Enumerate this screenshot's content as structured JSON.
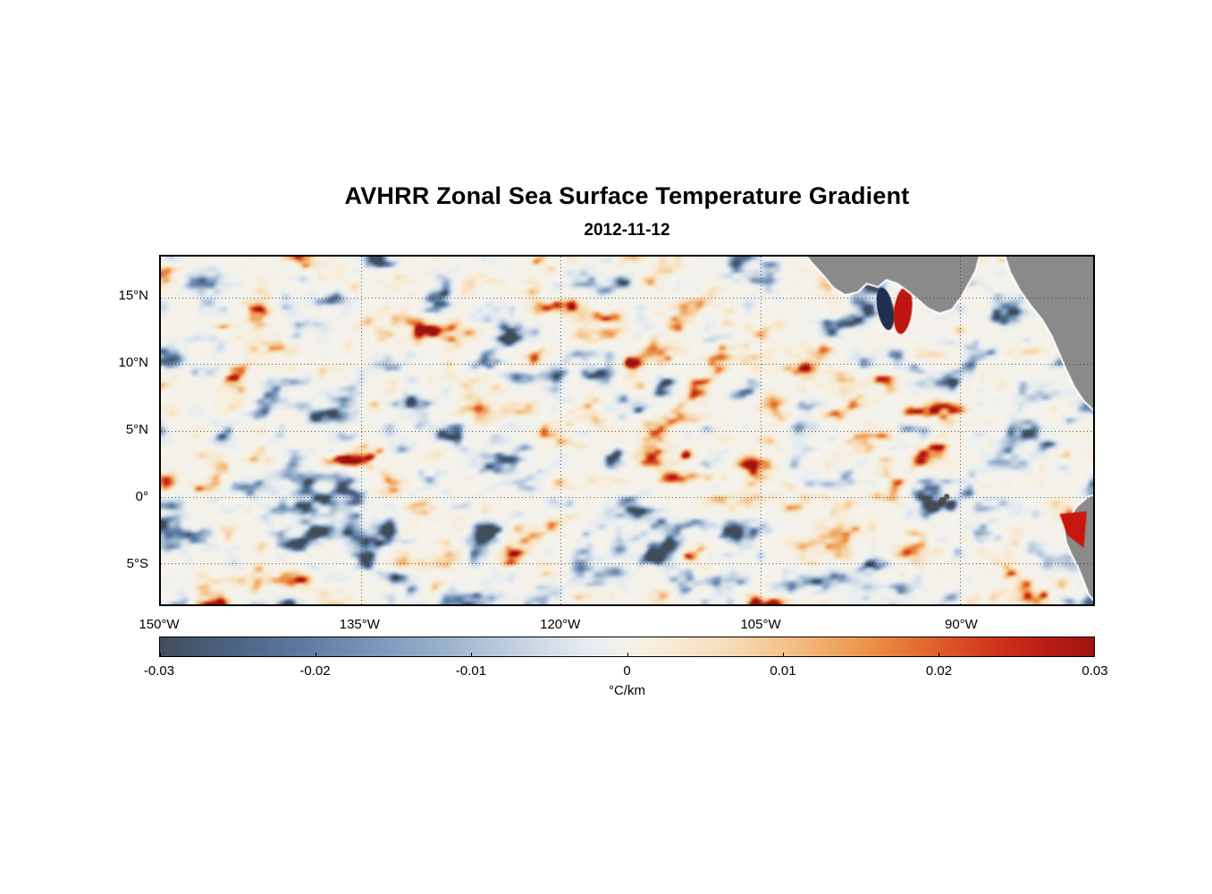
{
  "chart_data": {
    "type": "heatmap",
    "title": "AVHRR Zonal Sea Surface Temperature Gradient",
    "subtitle": "2012-11-12",
    "x_axis": {
      "label": "",
      "ticks": [
        "150°W",
        "135°W",
        "120°W",
        "105°W",
        "90°W"
      ],
      "tick_values": [
        -150,
        -135,
        -120,
        -105,
        -90
      ],
      "range": [
        -150,
        -80
      ],
      "grid": true
    },
    "y_axis": {
      "label": "",
      "ticks": [
        "15°N",
        "10°N",
        "5°N",
        "0°",
        "5°S"
      ],
      "tick_values": [
        15,
        10,
        5,
        0,
        -5
      ],
      "range": [
        -8.1,
        18.1
      ],
      "grid": true
    },
    "colorbar": {
      "label": "°C/km",
      "orientation": "horizontal",
      "ticks": [
        "-0.03",
        "-0.02",
        "-0.01",
        "0",
        "0.01",
        "0.02",
        "0.03"
      ],
      "tick_values": [
        -0.03,
        -0.02,
        -0.01,
        0,
        0.01,
        0.02,
        0.03
      ],
      "range": [
        -0.03,
        0.03
      ],
      "colormap": [
        {
          "t": 0.0,
          "c": "#414d59"
        },
        {
          "t": 0.07,
          "c": "#49607e"
        },
        {
          "t": 0.15,
          "c": "#5b7aa0"
        },
        {
          "t": 0.24,
          "c": "#7e9abc"
        },
        {
          "t": 0.32,
          "c": "#a3b8d0"
        },
        {
          "t": 0.4,
          "c": "#cbd8e5"
        },
        {
          "t": 0.46,
          "c": "#e6ecf1"
        },
        {
          "t": 0.5,
          "c": "#f4f2ea"
        },
        {
          "t": 0.54,
          "c": "#f8ecd8"
        },
        {
          "t": 0.61,
          "c": "#f6dcb6"
        },
        {
          "t": 0.68,
          "c": "#f3bd82"
        },
        {
          "t": 0.76,
          "c": "#ec9148"
        },
        {
          "t": 0.83,
          "c": "#e0602a"
        },
        {
          "t": 0.9,
          "c": "#cf2f1d"
        },
        {
          "t": 0.96,
          "c": "#b21a14"
        },
        {
          "t": 1.0,
          "c": "#9d1411"
        }
      ]
    },
    "field_description": "Mesoscale turbulent field of zonal SST gradient over the eastern tropical Pacific; mostly pale near-zero values with scattered elongated positive (orange/red) and negative (blue) eddy filaments, a strong negative/positive dipole in the Gulf of Tehuantepec near 97W/14N, and a strong positive patch along the Ecuador coast near 82W/3S.",
    "land_color": "#8a8a8a",
    "land_masses": [
      {
        "name": "mexico-guatemala-coast",
        "points": [
          [
            0.688,
            -0.02
          ],
          [
            0.7,
            0.02
          ],
          [
            0.712,
            0.055
          ],
          [
            0.722,
            0.088
          ],
          [
            0.734,
            0.108
          ],
          [
            0.747,
            0.1
          ],
          [
            0.757,
            0.075
          ],
          [
            0.769,
            0.085
          ],
          [
            0.778,
            0.064
          ],
          [
            0.79,
            0.075
          ],
          [
            0.801,
            0.096
          ],
          [
            0.812,
            0.12
          ],
          [
            0.823,
            0.146
          ],
          [
            0.835,
            0.161
          ],
          [
            0.848,
            0.15
          ],
          [
            0.858,
            0.114
          ],
          [
            0.866,
            0.075
          ],
          [
            0.873,
            0.04
          ],
          [
            0.879,
            -0.02
          ]
        ]
      },
      {
        "name": "central-america",
        "points": [
          [
            0.904,
            -0.02
          ],
          [
            0.912,
            0.045
          ],
          [
            0.922,
            0.095
          ],
          [
            0.934,
            0.14
          ],
          [
            0.946,
            0.18
          ],
          [
            0.956,
            0.225
          ],
          [
            0.964,
            0.275
          ],
          [
            0.972,
            0.325
          ],
          [
            0.981,
            0.375
          ],
          [
            0.991,
            0.415
          ],
          [
            1.005,
            0.45
          ],
          [
            1.02,
            0.465
          ],
          [
            1.02,
            -0.02
          ]
        ]
      },
      {
        "name": "south-america-coast",
        "points": [
          [
            1.02,
            0.67
          ],
          [
            0.995,
            0.693
          ],
          [
            0.983,
            0.72
          ],
          [
            0.975,
            0.752
          ],
          [
            0.97,
            0.788
          ],
          [
            0.972,
            0.822
          ],
          [
            0.978,
            0.858
          ],
          [
            0.985,
            0.895
          ],
          [
            0.991,
            0.935
          ],
          [
            0.996,
            0.97
          ],
          [
            1.005,
            1.0
          ],
          [
            1.02,
            1.02
          ]
        ]
      }
    ],
    "features": [
      {
        "type": "ellipse",
        "name": "tehuantepec-negative-lobe",
        "x": 0.777,
        "y": 0.15,
        "rx": 0.0085,
        "ry": 0.062,
        "rot": -0.18,
        "color": "#1e3050",
        "over_land": false
      },
      {
        "type": "ellipse",
        "name": "tehuantepec-positive-lobe",
        "x": 0.796,
        "y": 0.155,
        "rx": 0.0095,
        "ry": 0.068,
        "rot": 0.12,
        "color": "#bf1612",
        "over_land": false
      },
      {
        "type": "polygon",
        "name": "ecuador-coast-positive-patch",
        "color": "#c8170e",
        "over_land": true,
        "points": [
          [
            0.964,
            0.74
          ],
          [
            0.993,
            0.733
          ],
          [
            0.99,
            0.838
          ],
          [
            0.972,
            0.8
          ]
        ]
      },
      {
        "type": "ellipse",
        "name": "galapagos-islands",
        "x": 0.838,
        "y": 0.705,
        "rx": 0.004,
        "ry": 0.014,
        "rot": 0.5,
        "color": "#4a4a4a",
        "over_land": true
      },
      {
        "type": "ellipse",
        "name": "galapagos-islands-2",
        "x": 0.843,
        "y": 0.69,
        "rx": 0.003,
        "ry": 0.008,
        "rot": -0.4,
        "color": "#555555",
        "over_land": true
      }
    ]
  }
}
